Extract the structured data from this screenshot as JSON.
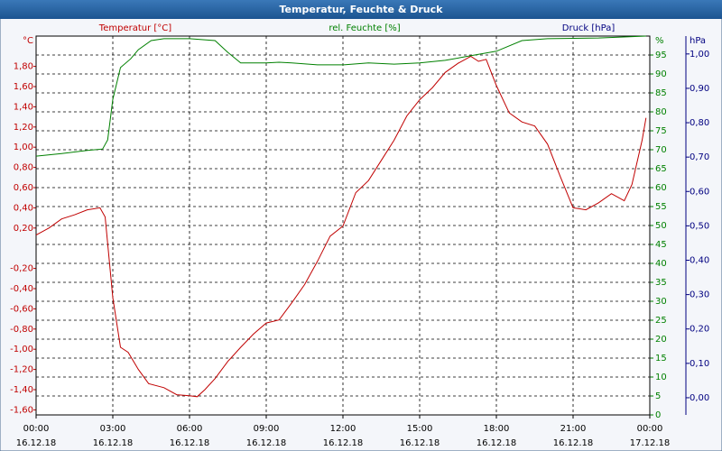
{
  "chart_data": {
    "type": "line",
    "title": "Temperatur, Feuchte & Druck",
    "grid": true,
    "xlim": [
      0,
      24
    ],
    "xticks": [
      {
        "value": 0,
        "label": "00:00 16.12.18"
      },
      {
        "value": 3,
        "label": "03:00 16.12.18"
      },
      {
        "value": 6,
        "label": "06:00 16.12.18"
      },
      {
        "value": 9,
        "label": "09:00 16.12.18"
      },
      {
        "value": 12,
        "label": "12:00 16.12.18"
      },
      {
        "value": 15,
        "label": "15:00 16.12.18"
      },
      {
        "value": 18,
        "label": "18:00 16.12.18"
      },
      {
        "value": 21,
        "label": "21:00 16.12.18"
      },
      {
        "value": 24,
        "label": "00:00 17.12.18"
      }
    ],
    "y_unit": "°C",
    "ylim": [
      -1.65,
      2.1
    ],
    "yticks": [
      {
        "value": 1.8,
        "label": "1,80"
      },
      {
        "value": 1.6,
        "label": "1,60"
      },
      {
        "value": 1.4,
        "label": "1,40"
      },
      {
        "value": 1.2,
        "label": "1,20"
      },
      {
        "value": 1.0,
        "label": "1,00"
      },
      {
        "value": 0.8,
        "label": "0,80"
      },
      {
        "value": 0.6,
        "label": "0,60"
      },
      {
        "value": 0.4,
        "label": "0,40"
      },
      {
        "value": 0.2,
        "label": "0,20"
      },
      {
        "value": -0.2,
        "label": "-0,20"
      },
      {
        "value": -0.4,
        "label": "-0,40"
      },
      {
        "value": -0.6,
        "label": "-0,60"
      },
      {
        "value": -0.8,
        "label": "-0,80"
      },
      {
        "value": -1.0,
        "label": "-1,00"
      },
      {
        "value": -1.2,
        "label": "-1,20"
      },
      {
        "value": -1.4,
        "label": "-1,40"
      },
      {
        "value": -1.6,
        "label": "-1,60"
      }
    ],
    "y2_unit": "%",
    "y2lim": [
      0,
      100
    ],
    "y2ticks": [
      0,
      5,
      10,
      15,
      20,
      25,
      30,
      35,
      40,
      45,
      50,
      55,
      60,
      65,
      70,
      75,
      80,
      85,
      90,
      95
    ],
    "y3_unit": "hPa",
    "y3lim": [
      -0.05,
      1.052
    ],
    "y3ticks": [
      {
        "value": 0,
        "label": "0,00"
      },
      {
        "value": 0.1,
        "label": "0,10"
      },
      {
        "value": 0.2,
        "label": "0,20"
      },
      {
        "value": 0.3,
        "label": "0,30"
      },
      {
        "value": 0.4,
        "label": "0,40"
      },
      {
        "value": 0.5,
        "label": "0,50"
      },
      {
        "value": 0.6,
        "label": "0,60"
      },
      {
        "value": 0.7,
        "label": "0,70"
      },
      {
        "value": 0.8,
        "label": "0,80"
      },
      {
        "value": 0.9,
        "label": "0,90"
      },
      {
        "value": 1.0,
        "label": "1,00"
      }
    ],
    "series": [
      {
        "name": "Temperatur [°C]",
        "color": "#c00000",
        "axis": "y",
        "x": [
          0,
          0.5,
          1,
          1.5,
          2,
          2.5,
          2.7,
          3,
          3.3,
          3.6,
          4,
          4.4,
          5,
          5.5,
          6,
          6.3,
          6.6,
          7,
          7.5,
          8,
          8.5,
          9,
          9.5,
          10,
          10.5,
          11,
          11.5,
          12,
          12.5,
          13,
          13.5,
          14,
          14.5,
          15,
          15.5,
          16,
          16.5,
          17,
          17.3,
          17.6,
          18,
          18.5,
          19,
          19.5,
          20,
          20.5,
          21,
          21.5,
          22,
          22.5,
          23,
          23.3,
          23.7,
          23.85
        ],
        "values": [
          0.13,
          0.2,
          0.29,
          0.33,
          0.38,
          0.4,
          0.31,
          -0.49,
          -0.98,
          -1.03,
          -1.2,
          -1.34,
          -1.38,
          -1.45,
          -1.46,
          -1.47,
          -1.4,
          -1.29,
          -1.12,
          -0.98,
          -0.85,
          -0.74,
          -0.71,
          -0.54,
          -0.36,
          -0.13,
          0.12,
          0.22,
          0.55,
          0.67,
          0.87,
          1.07,
          1.31,
          1.47,
          1.59,
          1.74,
          1.83,
          1.9,
          1.85,
          1.87,
          1.61,
          1.34,
          1.25,
          1.21,
          1.03,
          0.71,
          0.4,
          0.38,
          0.45,
          0.54,
          0.47,
          0.63,
          1.07,
          1.29
        ]
      },
      {
        "name": "rel. Feuchte [%]",
        "color": "#008000",
        "axis": "y2",
        "x": [
          0,
          1,
          2,
          2.6,
          2.8,
          3,
          3.3,
          3.7,
          4,
          4.5,
          5,
          6,
          7,
          7.5,
          8,
          9,
          9.5,
          10,
          11,
          12,
          13,
          14,
          15,
          16,
          17,
          18,
          19,
          20,
          22,
          23.85
        ],
        "values": [
          68.3,
          69,
          69.8,
          70.2,
          72.6,
          83.3,
          91.7,
          94,
          96.4,
          98.8,
          99.3,
          99.3,
          98.8,
          95.7,
          92.9,
          92.9,
          93.1,
          92.9,
          92.4,
          92.4,
          92.9,
          92.6,
          92.9,
          93.6,
          94.8,
          96,
          98.8,
          99.3,
          99.5,
          100
        ]
      },
      {
        "name": "Druck [hPa]",
        "color": "#000080",
        "axis": "y3",
        "x": [],
        "values": []
      }
    ]
  }
}
